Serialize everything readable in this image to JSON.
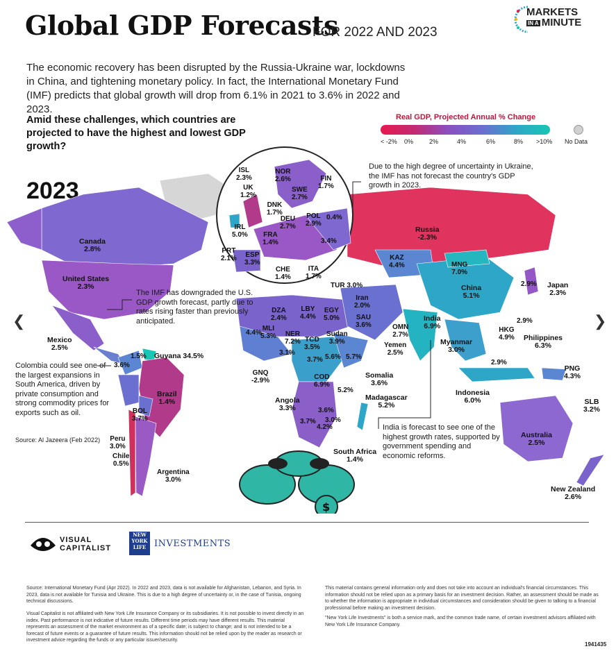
{
  "header": {
    "title": "Global GDP Forecasts",
    "subtitle": "FOR 2022 AND 2023",
    "intro": "The economic recovery has been disrupted by the Russia-Ukraine war, lockdowns in China, and tightening monetary policy. In fact, the International Monetary Fund (IMF) predicts that global growth will drop from 6.1% in 2021 to 3.6% in 2022 and 2023.",
    "question": "Amid these challenges, which countries are projected to have the highest and lowest GDP growth?",
    "brand_line1": "MARKETS",
    "brand_small": "IN A",
    "brand_line2": "MINUTE"
  },
  "legend": {
    "title": "Real GDP, Projected Annual % Change",
    "ticks": [
      "< -2%",
      "0%",
      "2%",
      "4%",
      "6%",
      "8%",
      ">10%"
    ],
    "nodata": "No Data",
    "colors": [
      "#e8194f",
      "#c22b73",
      "#8a4fc0",
      "#6b6fd0",
      "#2ea6c8",
      "#17c6b4"
    ]
  },
  "map": {
    "year": "2023",
    "countries": [
      {
        "id": "canada",
        "name": "Canada",
        "value": "2.8%"
      },
      {
        "id": "usa",
        "name": "United States",
        "value": "2.3%"
      },
      {
        "id": "mexico",
        "name": "Mexico",
        "value": "2.5%"
      },
      {
        "id": "guyana",
        "name": "Guyana 34.5%",
        "value": ""
      },
      {
        "id": "brazil",
        "name": "Brazil",
        "value": "1.4%"
      },
      {
        "id": "bol",
        "name": "BOL",
        "value": "3.7%"
      },
      {
        "id": "peru",
        "name": "Peru",
        "value": "3.0%"
      },
      {
        "id": "chile",
        "name": "Chile",
        "value": "0.5%"
      },
      {
        "id": "argentina",
        "name": "Argentina",
        "value": "3.0%"
      },
      {
        "id": "isl",
        "name": "ISL",
        "value": "2.3%"
      },
      {
        "id": "nor",
        "name": "NOR",
        "value": "2.6%"
      },
      {
        "id": "fin",
        "name": "FIN",
        "value": "1.7%"
      },
      {
        "id": "uk",
        "name": "UK",
        "value": "1.2%"
      },
      {
        "id": "swe",
        "name": "SWE",
        "value": "2.7%"
      },
      {
        "id": "dnk",
        "name": "DNK",
        "value": "1.7%"
      },
      {
        "id": "irl",
        "name": "IRL",
        "value": "5.0%"
      },
      {
        "id": "deu",
        "name": "DEU",
        "value": "2.7%"
      },
      {
        "id": "pol",
        "name": "POL",
        "value": "2.9%"
      },
      {
        "id": "fra",
        "name": "FRA",
        "value": "1.4%"
      },
      {
        "id": "prt",
        "name": "PRT",
        "value": "2.1%"
      },
      {
        "id": "esp",
        "name": "ESP",
        "value": "3.3%"
      },
      {
        "id": "che",
        "name": "CHE",
        "value": "1.4%"
      },
      {
        "id": "ita",
        "name": "ITA",
        "value": "1.7%"
      },
      {
        "id": "russia",
        "name": "Russia",
        "value": "-2.3%"
      },
      {
        "id": "kaz",
        "name": "KAZ",
        "value": "4.4%"
      },
      {
        "id": "mng",
        "name": "MNG",
        "value": "7.0%"
      },
      {
        "id": "china",
        "name": "China",
        "value": "5.1%"
      },
      {
        "id": "japan",
        "name": "Japan",
        "value": "2.3%"
      },
      {
        "id": "tur",
        "name": "TUR",
        "value": "3.0%"
      },
      {
        "id": "iran",
        "name": "Iran",
        "value": "2.0%"
      },
      {
        "id": "sau",
        "name": "SAU",
        "value": "3.6%"
      },
      {
        "id": "omn",
        "name": "OMN",
        "value": "2.7%"
      },
      {
        "id": "yemen",
        "name": "Yemen",
        "value": "2.5%"
      },
      {
        "id": "india",
        "name": "India",
        "value": "6.9%"
      },
      {
        "id": "hkg",
        "name": "HKG",
        "value": "4.9%"
      },
      {
        "id": "philippines",
        "name": "Philippines",
        "value": "6.3%"
      },
      {
        "id": "myanmar",
        "name": "Myanmar",
        "value": "3.0%"
      },
      {
        "id": "indonesia",
        "name": "Indonesia",
        "value": "6.0%"
      },
      {
        "id": "png",
        "name": "PNG",
        "value": "4.3%"
      },
      {
        "id": "slb",
        "name": "SLB",
        "value": "3.2%"
      },
      {
        "id": "australia",
        "name": "Australia",
        "value": "2.5%"
      },
      {
        "id": "nz",
        "name": "New Zealand",
        "value": "2.6%"
      },
      {
        "id": "dza",
        "name": "DZA",
        "value": "2.4%"
      },
      {
        "id": "lby",
        "name": "LBY",
        "value": "4.4%"
      },
      {
        "id": "egy",
        "name": "EGY",
        "value": "5.0%"
      },
      {
        "id": "mli",
        "name": "MLI",
        "value": "5.3%"
      },
      {
        "id": "ner",
        "name": "NER",
        "value": "7.2%"
      },
      {
        "id": "tcd",
        "name": "TCD",
        "value": "3.5%"
      },
      {
        "id": "sudan",
        "name": "Sudan",
        "value": "3.9%"
      },
      {
        "id": "gnq",
        "name": "GNQ",
        "value": "-2.9%"
      },
      {
        "id": "cod",
        "name": "COD",
        "value": "6.9%"
      },
      {
        "id": "somalia",
        "name": "Somalia",
        "value": "3.6%"
      },
      {
        "id": "angola",
        "name": "Angola",
        "value": "3.3%"
      },
      {
        "id": "madagascar",
        "name": "Madagascar",
        "value": "5.2%"
      },
      {
        "id": "south_africa",
        "name": "South Africa",
        "value": "1.4%"
      }
    ],
    "small_values": [
      "0.4%",
      "3.4%",
      "4.4%",
      "3.1%",
      "3.7%",
      "5.6%",
      "5.7%",
      "5.2%",
      "3.6%",
      "3.7%",
      "3.0%",
      "4.2%",
      "1.5%",
      "3.6%",
      "2.9%",
      "2.9%",
      "2.9%"
    ]
  },
  "notes": {
    "ukraine": "Due to the high degree of uncertainty in Ukraine, the IMF has not forecast the country's GDP growth in 2023.",
    "usa": "The IMF has downgraded the U.S. GDP growth forecast, partly due to rates rising faster than previously anticipated.",
    "colombia": "Colombia could see one of the largest expansions in South America, driven by private consumption and strong commodity prices for exports such as oil.",
    "source": "Source: Al Jazeera (Feb 2022)",
    "india": "India is forecast to see one of the highest growth rates, supported by government spending and economic reforms."
  },
  "sponsors": {
    "vc_line1": "VISUAL",
    "vc_line2": "CAPITALIST",
    "ny_line1": "NEW",
    "ny_line2": "YORK",
    "ny_line3": "LIFE",
    "ny_investments": "INVESTMENTS"
  },
  "footer": {
    "col1_p1": "Source: International Monetary Fund (Apr 2022). In 2022 and 2023, data is not available for Afghanistan, Lebanon, and Syria. In 2023, data is not available for Tunisia and Ukraine. This is due to a high degree of uncertainty or, in the case of Tunisia, ongoing technical discussions.",
    "col1_p2": "Visual Capitalist is not affiliated with New York Life Insurance Company or its subsidiaries. It is not possible to invest directly in an index. Past performance is not indicative of future results. Different time periods may have different results. This material represents an assessment of the market environment as of a specific date; is subject to change; and is not intended to be a forecast of future events or a guarantee of future results. This information should not be relied upon by the reader as research or investment advice regarding the funds or any particular issuer/security.",
    "col2_p1": "This material contains general information only and does not take into account an individual's financial circumstances. This information should not be relied upon as a primary basis for an investment decision. Rather, an assessment should be made as to whether the information is appropriate in individual circumstances and consideration should be given to talking to a financial professional before making an investment decision.",
    "col2_p2": "\"New York Life Investments\" is both a service mark, and the common trade name, of certain investment advisors affiliated with New York Life Insurance Company.",
    "code": "1941435"
  }
}
